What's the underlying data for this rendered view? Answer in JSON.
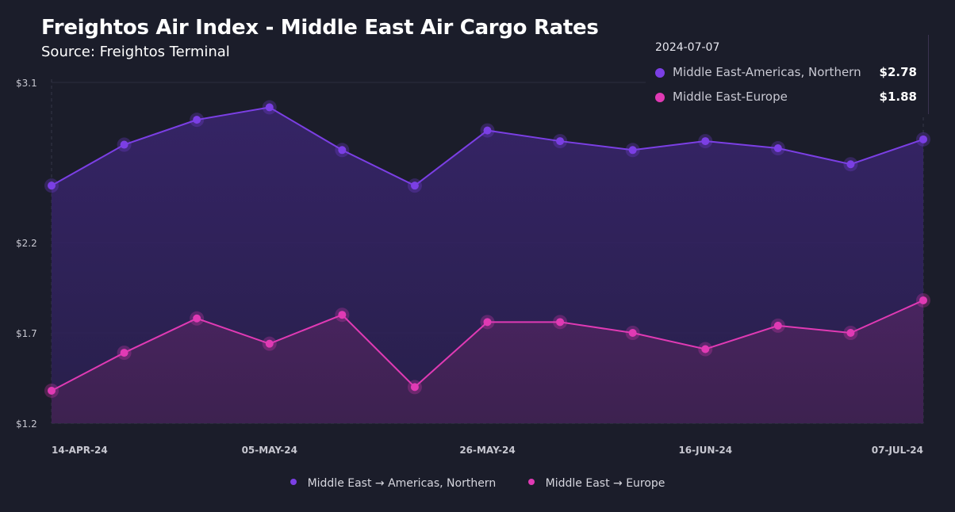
{
  "header": {
    "title": "Freightos Air Index - Middle East Air Cargo Rates",
    "subtitle": "Source: Freightos Terminal"
  },
  "tooltip": {
    "date": "2024-07-07",
    "rows": [
      {
        "name": "Middle East-Americas, Northern",
        "value": "$2.78"
      },
      {
        "name": "Middle East-Europe",
        "value": "$1.88"
      }
    ]
  },
  "legend": [
    {
      "label": "Middle East → Americas, Northern"
    },
    {
      "label": "Middle East → Europe"
    }
  ],
  "colors": {
    "background": "#1b1d2a",
    "americas": "#7b3fe4",
    "europe": "#e03ab4",
    "grid": "#2c2e40"
  },
  "chart_data": {
    "type": "area",
    "title": "Freightos Air Index - Middle East Air Cargo Rates",
    "subtitle": "Source: Freightos Terminal",
    "x": [
      "2024-04-14",
      "2024-04-21",
      "2024-04-28",
      "2024-05-05",
      "2024-05-12",
      "2024-05-19",
      "2024-05-26",
      "2024-06-02",
      "2024-06-09",
      "2024-06-16",
      "2024-06-23",
      "2024-06-30",
      "2024-07-07"
    ],
    "x_tick_labels": [
      {
        "label": "14-APR-24",
        "index": 0
      },
      {
        "label": "05-MAY-24",
        "index": 3
      },
      {
        "label": "26-MAY-24",
        "index": 6
      },
      {
        "label": "16-JUN-24",
        "index": 9
      },
      {
        "label": "07-JUL-24",
        "index": 12
      }
    ],
    "y_ticks": [
      "$3.1",
      "$2.2",
      "$1.7",
      "$1.2"
    ],
    "y_tick_values": [
      3.1,
      2.2,
      1.7,
      1.2
    ],
    "y_scale_breaks": [
      [
        1.2,
        1.7
      ],
      [
        1.7,
        2.2
      ],
      [
        2.2,
        3.1
      ]
    ],
    "series": [
      {
        "name": "Middle East-Americas, Northern",
        "color": "#7b3fe4",
        "values": [
          2.52,
          2.75,
          2.89,
          2.96,
          2.72,
          2.52,
          2.83,
          2.77,
          2.72,
          2.77,
          2.73,
          2.64,
          2.78
        ]
      },
      {
        "name": "Middle East-Europe",
        "color": "#e03ab4",
        "values": [
          1.38,
          1.59,
          1.78,
          1.64,
          1.8,
          1.4,
          1.76,
          1.76,
          1.7,
          1.61,
          1.74,
          1.7,
          1.88
        ]
      }
    ],
    "grid": true,
    "legend_position": "bottom"
  }
}
